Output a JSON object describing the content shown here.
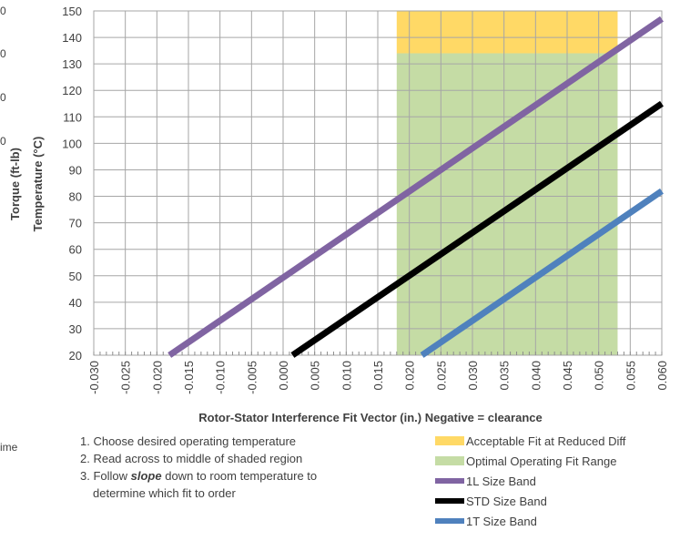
{
  "chart_data": {
    "type": "line",
    "xlabel": "Rotor-Stator Interference Fit Vector (in.) Negative = clearance",
    "ylabels": [
      "Torque (ft-lb)",
      "Temperature (°C)"
    ],
    "xlim": [
      -0.03,
      0.06
    ],
    "ylim": [
      20,
      150
    ],
    "x_ticks": [
      "-0.030",
      "-0.025",
      "-0.020",
      "-0.015",
      "-0.010",
      "-0.005",
      "0.000",
      "0.005",
      "0.010",
      "0.015",
      "0.020",
      "0.025",
      "0.030",
      "0.035",
      "0.040",
      "0.045",
      "0.050",
      "0.055",
      "0.060"
    ],
    "y_ticks": [
      "20",
      "30",
      "40",
      "50",
      "60",
      "70",
      "80",
      "90",
      "100",
      "110",
      "120",
      "130",
      "140",
      "150"
    ],
    "grid": true,
    "regions": [
      {
        "name": "Acceptable Fit at Reduced Diff",
        "x": [
          0.018,
          0.053
        ],
        "y": [
          134,
          150
        ],
        "color": "#FFD966"
      },
      {
        "name": "Optimal Operating Fit Range",
        "x": [
          0.018,
          0.053
        ],
        "y": [
          20,
          134
        ],
        "color": "#C5DCA5"
      }
    ],
    "series": [
      {
        "name": "1L Size Band",
        "color": "#8064A2",
        "x": [
          -0.018,
          0.06
        ],
        "y": [
          20,
          147
        ]
      },
      {
        "name": "STD Size Band",
        "color": "#000000",
        "x": [
          0.0015,
          0.06
        ],
        "y": [
          20,
          115
        ]
      },
      {
        "name": "1T Size Band",
        "color": "#4F81BD",
        "x": [
          0.022,
          0.06
        ],
        "y": [
          20,
          82
        ]
      }
    ]
  },
  "instructions": [
    "1. Choose desired operating temperature",
    "2. Read across to middle of shaded region",
    "3. Follow ",
    "slope",
    " down to room temperature to",
    "determine which fit to order"
  ],
  "legend": [
    {
      "label": "Acceptable Fit at Reduced Diff",
      "color": "#FFD966"
    },
    {
      "label": "Optimal Operating Fit Range",
      "color": "#C5DCA5"
    },
    {
      "label": "1L Size Band",
      "color": "#8064A2"
    },
    {
      "label": "STD Size Band",
      "color": "#000000"
    },
    {
      "label": "1T Size Band",
      "color": "#4F81BD"
    }
  ],
  "edge_fragments": [
    "0",
    "0",
    "0",
    "0",
    "ime"
  ]
}
